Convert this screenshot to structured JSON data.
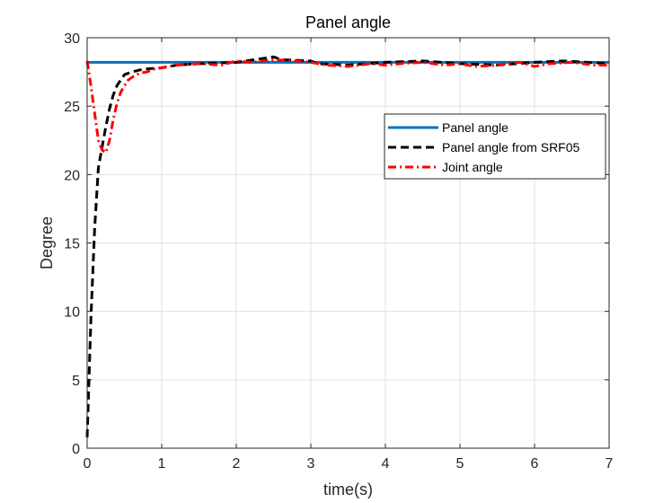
{
  "chart_data": {
    "type": "line",
    "title": "Panel angle",
    "xlabel": "time(s)",
    "ylabel": "Degree",
    "xlim": [
      0,
      7
    ],
    "ylim": [
      0,
      30
    ],
    "xticks": [
      0,
      1,
      2,
      3,
      4,
      5,
      6,
      7
    ],
    "yticks": [
      0,
      5,
      10,
      15,
      20,
      25,
      30
    ],
    "grid": true,
    "legend_position": "upper-right",
    "series": [
      {
        "name": "Panel angle",
        "color": "#0072BD",
        "style": "solid",
        "x": [
          0,
          7
        ],
        "y": [
          28.2,
          28.2
        ]
      },
      {
        "name": "Panel angle from SRF05",
        "color": "#000000",
        "style": "dashed",
        "x": [
          0,
          0.05,
          0.1,
          0.15,
          0.2,
          0.25,
          0.3,
          0.35,
          0.4,
          0.5,
          0.6,
          0.75,
          1.0,
          1.2,
          1.5,
          2.0,
          2.5,
          2.6,
          3.0,
          3.1,
          3.5,
          4.0,
          4.5,
          5.0,
          5.5,
          6.0,
          6.4,
          7.0
        ],
        "y": [
          0.8,
          9.5,
          16.0,
          20.5,
          22.0,
          23.5,
          24.8,
          25.8,
          26.5,
          27.3,
          27.5,
          27.7,
          27.8,
          28.0,
          28.1,
          28.2,
          28.6,
          28.4,
          28.3,
          28.1,
          28.0,
          28.2,
          28.3,
          28.1,
          28.0,
          28.2,
          28.3,
          28.1
        ]
      },
      {
        "name": "Joint angle",
        "color": "#FF0000",
        "style": "dashdot",
        "x": [
          0,
          0.05,
          0.1,
          0.15,
          0.2,
          0.25,
          0.3,
          0.35,
          0.4,
          0.45,
          0.5,
          0.55,
          0.6,
          0.7,
          0.8,
          0.9,
          1.0,
          1.2,
          1.5,
          1.8,
          2.0,
          2.2,
          2.5,
          2.8,
          3.0,
          3.2,
          3.5,
          3.8,
          4.0,
          4.2,
          4.5,
          4.8,
          5.0,
          5.2,
          5.5,
          5.8,
          6.0,
          6.2,
          6.5,
          6.8,
          7.0
        ],
        "y": [
          28.3,
          26.5,
          24.5,
          22.5,
          21.8,
          21.6,
          22.5,
          24.0,
          25.2,
          26.0,
          26.5,
          26.9,
          27.1,
          27.4,
          27.5,
          27.7,
          27.8,
          28.0,
          28.1,
          28.0,
          28.3,
          28.2,
          28.4,
          28.3,
          28.2,
          28.0,
          27.9,
          28.1,
          28.0,
          28.1,
          28.2,
          28.0,
          28.1,
          27.9,
          28.0,
          28.2,
          27.9,
          28.1,
          28.2,
          28.0,
          28.0
        ]
      }
    ]
  }
}
